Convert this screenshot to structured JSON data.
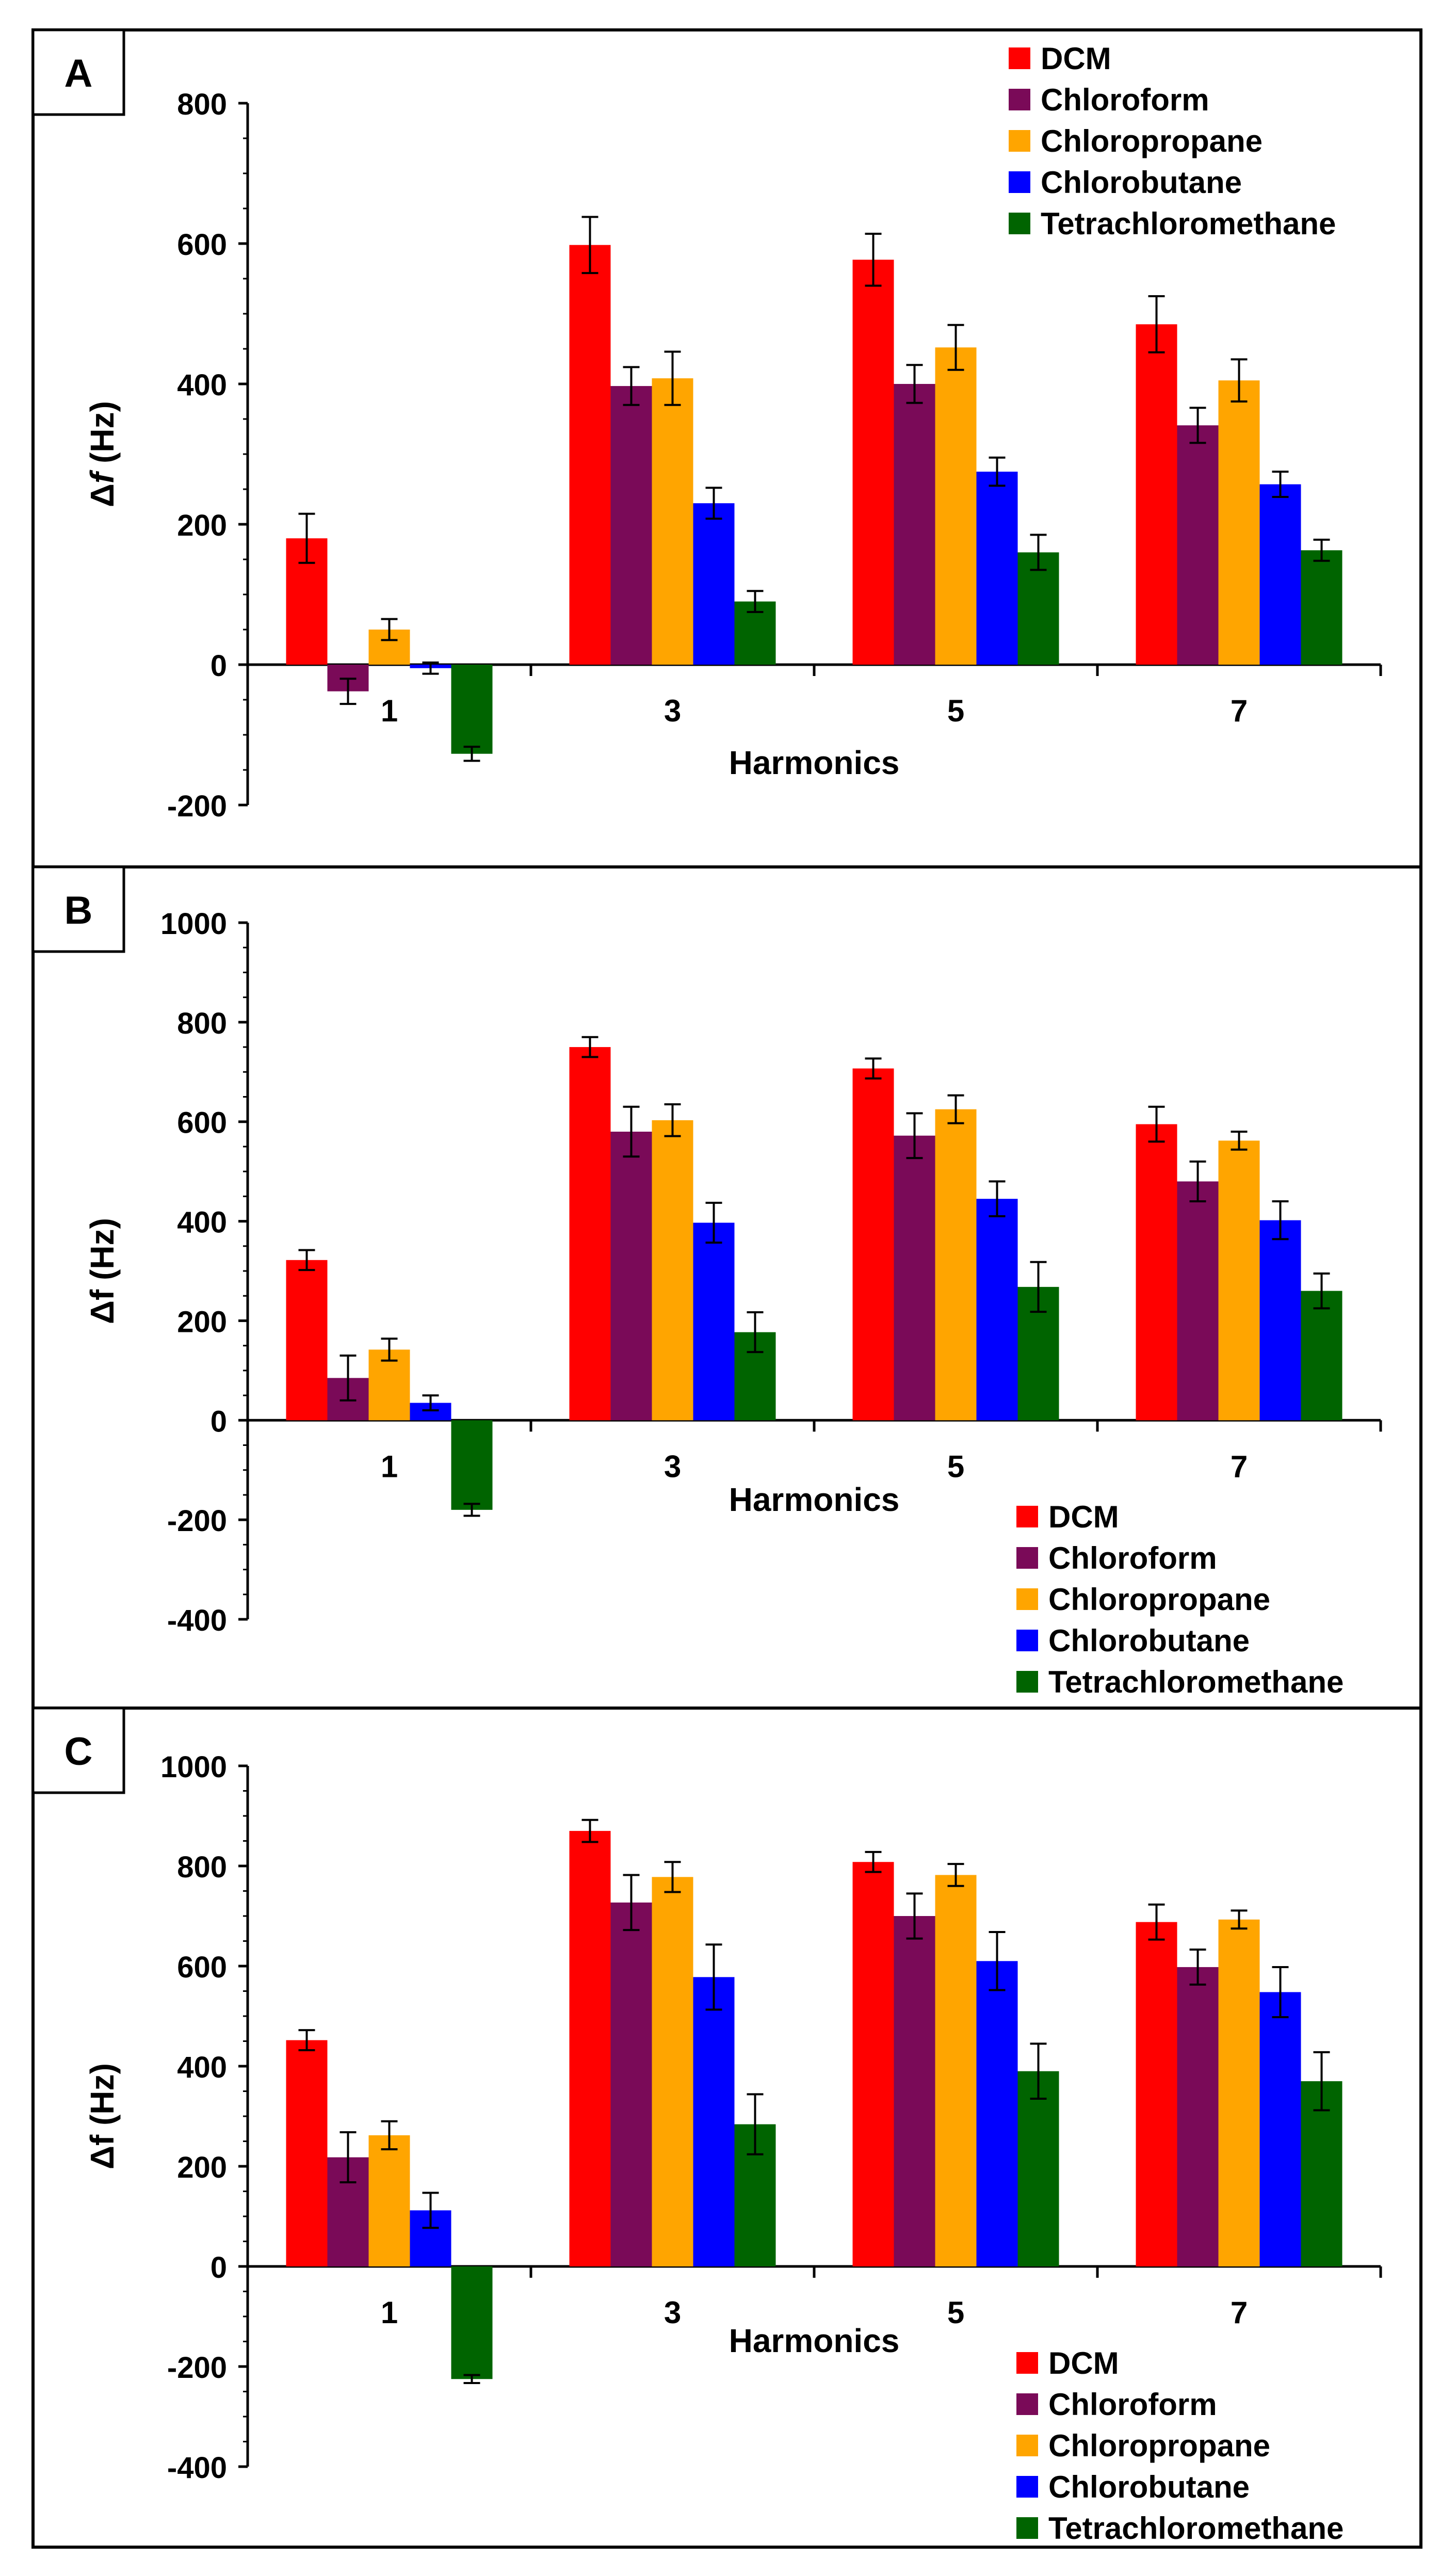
{
  "figure": {
    "series_colors": {
      "DCM": "#ff0000",
      "Chloroform": "#7a0a58",
      "Chloropropane": "#ffa500",
      "Chlorobutane": "#0000ff",
      "Tetrachloromethane": "#006400"
    }
  },
  "chart_data": [
    {
      "panel_label": "A",
      "type": "bar",
      "title": "",
      "xlabel": "Harmonics",
      "ylabel": "Δf (Hz)",
      "ylabel_prefix": "Δ",
      "ylabel_var": "f",
      "ylabel_suffix": " (Hz)",
      "ylim": [
        -200,
        800
      ],
      "yticks": [
        -200,
        0,
        200,
        400,
        600,
        800
      ],
      "categories": [
        "1",
        "3",
        "5",
        "7"
      ],
      "legend_position": "top-right",
      "series": [
        {
          "name": "DCM",
          "values": [
            180,
            598,
            577,
            485
          ],
          "errors": [
            35,
            40,
            37,
            40
          ]
        },
        {
          "name": "Chloroform",
          "values": [
            -38,
            397,
            400,
            341
          ],
          "errors": [
            18,
            27,
            27,
            25
          ]
        },
        {
          "name": "Chloropropane",
          "values": [
            50,
            408,
            452,
            405
          ],
          "errors": [
            15,
            38,
            32,
            30
          ]
        },
        {
          "name": "Chlorobutane",
          "values": [
            -5,
            230,
            275,
            257
          ],
          "errors": [
            8,
            22,
            20,
            18
          ]
        },
        {
          "name": "Tetrachloromethane",
          "values": [
            -127,
            90,
            160,
            163
          ],
          "errors": [
            10,
            15,
            25,
            15
          ]
        }
      ]
    },
    {
      "panel_label": "B",
      "type": "bar",
      "title": "",
      "xlabel": "Harmonics",
      "ylabel": "Δf (Hz)",
      "ylabel_prefix": "Δ",
      "ylabel_var": "",
      "ylabel_suffix": "f (Hz)",
      "ylim": [
        -400,
        1000
      ],
      "yticks": [
        -400,
        -200,
        0,
        200,
        400,
        600,
        800,
        1000
      ],
      "categories": [
        "1",
        "3",
        "5",
        "7"
      ],
      "legend_position": "bottom-right",
      "series": [
        {
          "name": "DCM",
          "values": [
            322,
            750,
            707,
            595
          ],
          "errors": [
            20,
            20,
            20,
            35
          ]
        },
        {
          "name": "Chloroform",
          "values": [
            85,
            580,
            572,
            480
          ],
          "errors": [
            45,
            50,
            45,
            40
          ]
        },
        {
          "name": "Chloropropane",
          "values": [
            142,
            603,
            625,
            562
          ],
          "errors": [
            22,
            32,
            28,
            18
          ]
        },
        {
          "name": "Chlorobutane",
          "values": [
            35,
            397,
            445,
            402
          ],
          "errors": [
            15,
            40,
            35,
            38
          ]
        },
        {
          "name": "Tetrachloromethane",
          "values": [
            -180,
            177,
            268,
            260
          ],
          "errors": [
            12,
            40,
            50,
            35
          ]
        }
      ]
    },
    {
      "panel_label": "C",
      "type": "bar",
      "title": "",
      "xlabel": "Harmonics",
      "ylabel": "Δf (Hz)",
      "ylabel_prefix": "Δ",
      "ylabel_var": "",
      "ylabel_suffix": "f (Hz)",
      "ylim": [
        -400,
        1000
      ],
      "yticks": [
        -400,
        -200,
        0,
        200,
        400,
        600,
        800,
        1000
      ],
      "categories": [
        "1",
        "3",
        "5",
        "7"
      ],
      "legend_position": "bottom-right",
      "series": [
        {
          "name": "DCM",
          "values": [
            452,
            870,
            808,
            688
          ],
          "errors": [
            20,
            22,
            20,
            35
          ]
        },
        {
          "name": "Chloroform",
          "values": [
            218,
            727,
            700,
            598
          ],
          "errors": [
            50,
            55,
            45,
            35
          ]
        },
        {
          "name": "Chloropropane",
          "values": [
            262,
            778,
            782,
            693
          ],
          "errors": [
            28,
            30,
            22,
            18
          ]
        },
        {
          "name": "Chlorobutane",
          "values": [
            112,
            578,
            610,
            548
          ],
          "errors": [
            35,
            65,
            58,
            50
          ]
        },
        {
          "name": "Tetrachloromethane",
          "values": [
            -225,
            284,
            390,
            370
          ],
          "errors": [
            8,
            60,
            55,
            58
          ]
        }
      ]
    }
  ]
}
